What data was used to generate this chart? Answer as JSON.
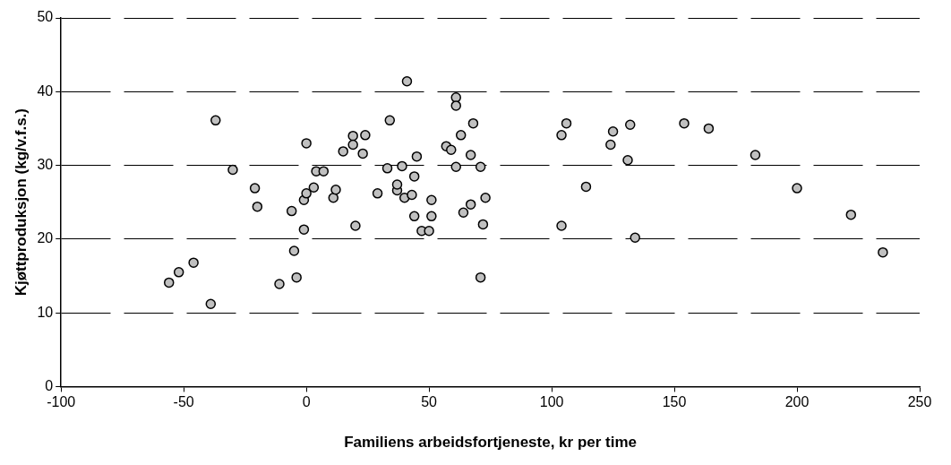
{
  "chart_data": {
    "type": "scatter",
    "xlabel": "Familiens arbeidsfortjeneste, kr per time",
    "ylabel": "Kjøttproduksjon (kg/v.f.s.)",
    "x": [
      -56,
      -52,
      -46,
      -39,
      -37,
      -30,
      -21,
      -20,
      -11,
      -6,
      -5,
      -4,
      -1,
      -1,
      0,
      0,
      3,
      4,
      7,
      11,
      12,
      15,
      19,
      19,
      20,
      23,
      24,
      29,
      33,
      34,
      37,
      37,
      39,
      40,
      41,
      43,
      44,
      44,
      45,
      47,
      50,
      51,
      51,
      57,
      59,
      61,
      61,
      61,
      63,
      64,
      67,
      67,
      68,
      71,
      71,
      72,
      73,
      104,
      104,
      106,
      114,
      124,
      125,
      131,
      132,
      134,
      154,
      164,
      183,
      200,
      222,
      235
    ],
    "series": [
      {
        "color": "#c0c0c0",
        "values": [
          14.1,
          15.5,
          16.8,
          11.2,
          36.1,
          29.4,
          26.9,
          24.4,
          13.9,
          23.8,
          18.4,
          14.8,
          21.3,
          25.3,
          33,
          26.2,
          27,
          29.2,
          29.2,
          25.6,
          26.7,
          31.9,
          34,
          32.8,
          21.8,
          31.6,
          34.1,
          26.2,
          29.6,
          36.1,
          26.6,
          27.4,
          29.9,
          25.6,
          41.4,
          26,
          28.5,
          23.1,
          31.2,
          21.1,
          21.1,
          25.3,
          23.1,
          32.6,
          32.1,
          29.8,
          39.2,
          38.1,
          34.1,
          23.6,
          31.4,
          24.7,
          35.7,
          29.8,
          14.8,
          22,
          25.6,
          34.1,
          21.8,
          35.7,
          27.1,
          32.8,
          34.6,
          30.7,
          35.5,
          20.2,
          35.7,
          35,
          31.4,
          26.9,
          23.3,
          18.2
        ]
      }
    ],
    "xlim": [
      -100,
      250
    ],
    "xticks": [
      -100,
      -50,
      0,
      50,
      100,
      150,
      200,
      250
    ],
    "ylim": [
      0,
      50
    ],
    "yticks": [
      0,
      10,
      20,
      30,
      40,
      50
    ],
    "grid": "y",
    "line_style": "dashed",
    "marker": "circle",
    "legend": false
  }
}
